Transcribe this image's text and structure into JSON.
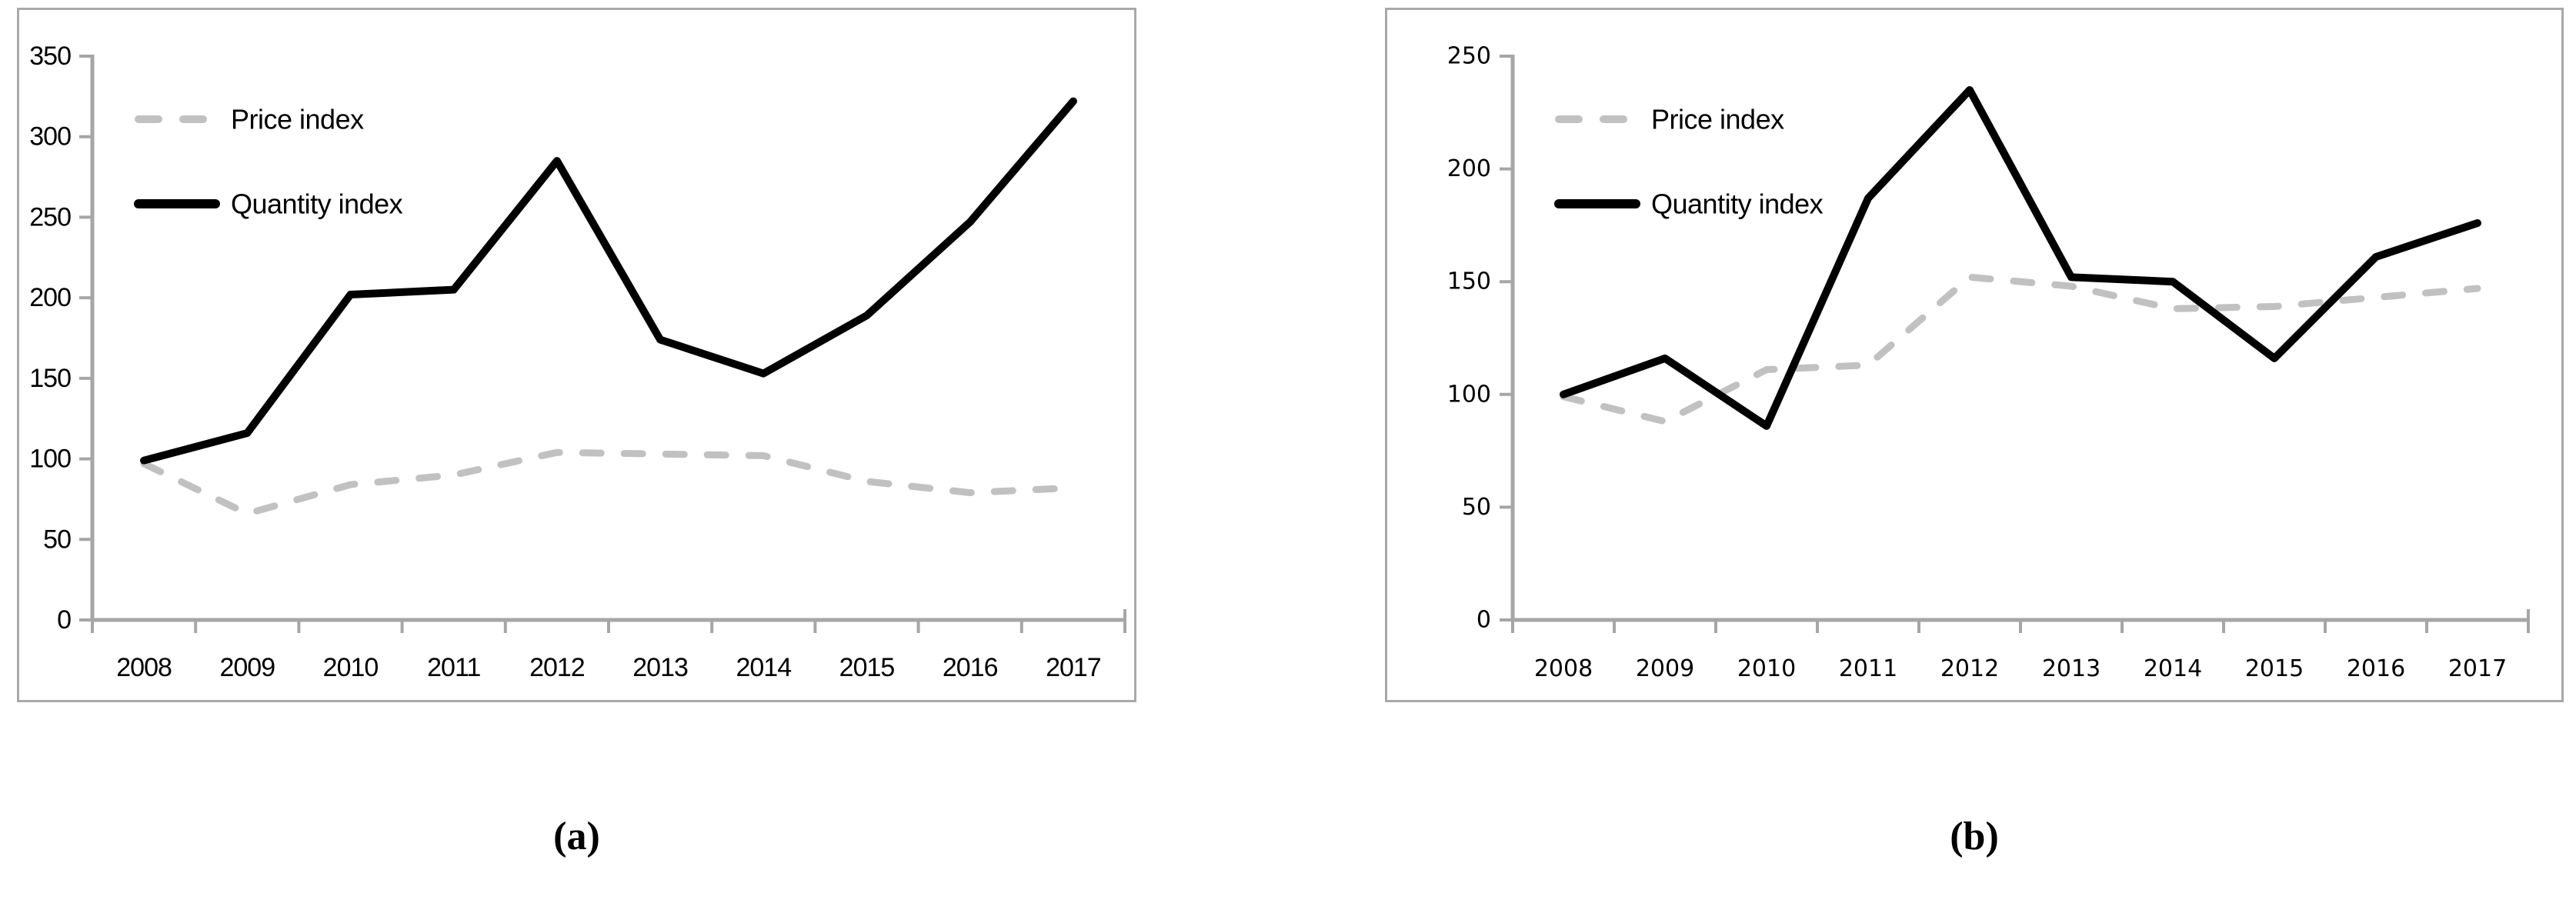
{
  "figure": {
    "panels": [
      {
        "id": "a",
        "caption": "(a)"
      },
      {
        "id": "b",
        "caption": "(b)"
      }
    ]
  },
  "colors": {
    "axis": "#a6a6a6",
    "panel_border": "#a9a9a9",
    "price_line": "#c1c1c1",
    "quantity_line": "#000000",
    "tick_text": "#000000"
  },
  "chart_data": [
    {
      "type": "line",
      "panel": "a",
      "title": "",
      "xlabel": "",
      "ylabel": "",
      "x": [
        "2008",
        "2009",
        "2010",
        "2011",
        "2012",
        "2013",
        "2014",
        "2015",
        "2016",
        "2017"
      ],
      "ylim": [
        0,
        350
      ],
      "yticks": [
        0,
        50,
        100,
        150,
        200,
        250,
        300,
        350
      ],
      "grid": false,
      "legend_position": "top-left",
      "series": [
        {
          "name": "Price index",
          "style": "dashed",
          "color": "#c1c1c1",
          "values": [
            97,
            66,
            84,
            90,
            104,
            103,
            102,
            86,
            79,
            82
          ]
        },
        {
          "name": "Quantity index",
          "style": "solid",
          "color": "#000000",
          "values": [
            99,
            116,
            202,
            205,
            285,
            174,
            153,
            189,
            247,
            322
          ]
        }
      ]
    },
    {
      "type": "line",
      "panel": "b",
      "title": "",
      "xlabel": "",
      "ylabel": "",
      "x": [
        "2008",
        "2009",
        "2010",
        "2011",
        "2012",
        "2013",
        "2014",
        "2015",
        "2016",
        "2017"
      ],
      "ylim": [
        0,
        250
      ],
      "yticks": [
        0,
        50,
        100,
        150,
        200,
        250
      ],
      "grid": false,
      "legend_position": "top-left",
      "series": [
        {
          "name": "Price index",
          "style": "dashed",
          "color": "#c1c1c1",
          "values": [
            99,
            88,
            111,
            113,
            152,
            148,
            138,
            139,
            143,
            147
          ]
        },
        {
          "name": "Quantity index",
          "style": "solid",
          "color": "#000000",
          "values": [
            100,
            116,
            86,
            187,
            235,
            152,
            150,
            116,
            161,
            176
          ]
        }
      ]
    }
  ]
}
